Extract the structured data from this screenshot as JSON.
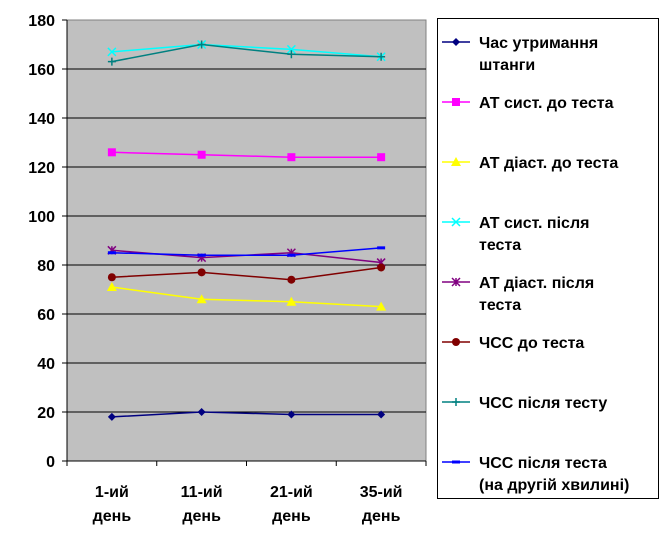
{
  "chart_data": {
    "type": "line",
    "title": "",
    "xlabel": "",
    "ylabel": "",
    "categories": [
      [
        "1-ий",
        "день"
      ],
      [
        "11-ий",
        "день"
      ],
      [
        "21-ий",
        "день"
      ],
      [
        "35-ий",
        "день"
      ]
    ],
    "ylim": [
      0,
      180
    ],
    "yticks": [
      0,
      20,
      40,
      60,
      80,
      100,
      120,
      140,
      160,
      180
    ],
    "grid": true,
    "legend_position": "right",
    "series": [
      {
        "name": "Час утримання штанги",
        "legend_lines": [
          "Час утримання",
          "штанги"
        ],
        "color": "#000080",
        "marker": "diamond",
        "values": [
          18,
          20,
          19,
          19
        ]
      },
      {
        "name": "АТ сист. до теста",
        "legend_lines": [
          "АТ сист. до теста"
        ],
        "color": "#FF00FF",
        "marker": "square",
        "values": [
          126,
          125,
          124,
          124
        ]
      },
      {
        "name": "АТ діаст. до теста",
        "legend_lines": [
          "АТ діаст. до теста"
        ],
        "color": "#FFFF00",
        "marker": "triangle",
        "values": [
          71,
          66,
          65,
          63
        ]
      },
      {
        "name": "АТ сист. після теста",
        "legend_lines": [
          "АТ сист. після",
          "теста"
        ],
        "color": "#00FFFF",
        "marker": "x",
        "values": [
          167,
          170,
          168,
          165
        ]
      },
      {
        "name": "АТ діаст. після теста",
        "legend_lines": [
          "АТ діаст. після",
          "теста"
        ],
        "color": "#800080",
        "marker": "star",
        "values": [
          86,
          83,
          85,
          81
        ]
      },
      {
        "name": "ЧСС до теста",
        "legend_lines": [
          "ЧСС до теста"
        ],
        "color": "#800000",
        "marker": "circle",
        "values": [
          75,
          77,
          74,
          79
        ]
      },
      {
        "name": "ЧСС після тесту",
        "legend_lines": [
          "ЧСС після тесту"
        ],
        "color": "#008080",
        "marker": "plus",
        "values": [
          163,
          170,
          166,
          165
        ]
      },
      {
        "name": "ЧСС після теста (на другій хвилині)",
        "legend_lines": [
          "ЧСС після теста",
          "(на другій хвилині)"
        ],
        "color": "#0000FF",
        "marker": "dash",
        "values": [
          85,
          84,
          84,
          87
        ]
      }
    ]
  }
}
